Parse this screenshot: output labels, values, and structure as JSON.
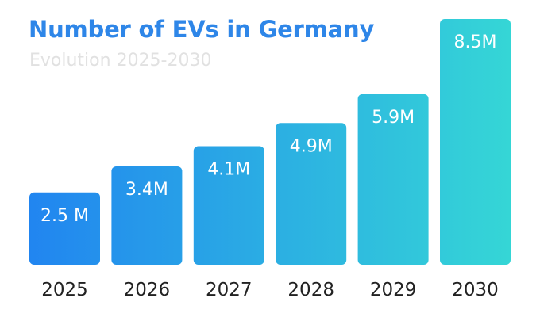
{
  "chart_data": {
    "type": "bar",
    "title": "Number of EVs in Germany",
    "subtitle": "Evolution 2025-2030",
    "xlabel": "",
    "ylabel": "",
    "categories": [
      "2025",
      "2026",
      "2027",
      "2028",
      "2029",
      "2030"
    ],
    "values": [
      2.5,
      3.4,
      4.1,
      4.9,
      5.9,
      8.5
    ],
    "data_labels": [
      "2.5 M",
      "3.4M",
      "4.1M",
      "4.9M",
      "5.9M",
      "8.5M"
    ],
    "unit": "M",
    "ylim": [
      0,
      8.5
    ],
    "grid": false,
    "legend": "none",
    "colors": {
      "title": "#2e86e8",
      "subtitle": "#e1e1e1",
      "bar_start": "#2185f0",
      "bar_end": "#35d6d6",
      "bar_label": "#ffffff",
      "tick_label": "#222222"
    }
  }
}
